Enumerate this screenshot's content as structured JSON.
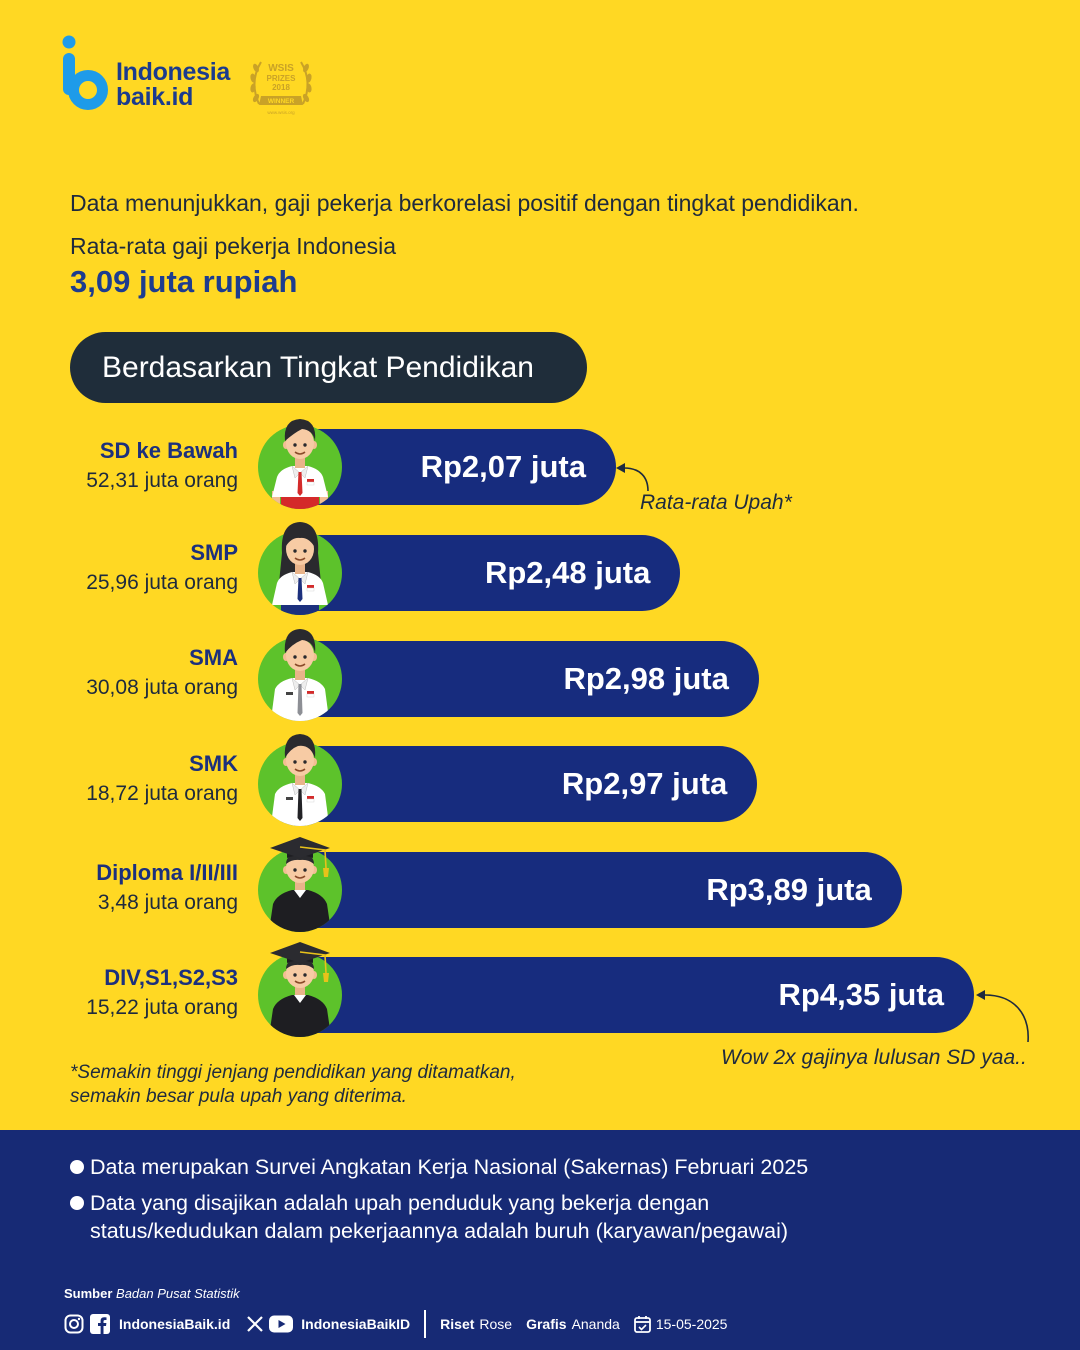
{
  "brand": {
    "name_line1": "Indonesia",
    "name_line2": "baik.id",
    "award_line1": "WSIS",
    "award_line2": "PRIZES",
    "award_line3": "2018",
    "award_line4": "WINNER",
    "award_line5": "www.wsis.org"
  },
  "intro": {
    "statement": "Data menunjukkan, gaji pekerja berkorelasi positif dengan tingkat pendidikan.",
    "avg_label": "Rata-rata gaji pekerja Indonesia",
    "avg_value": "3,09 juta rupiah"
  },
  "section_title": "Berdasarkan Tingkat Pendidikan",
  "chart_data": {
    "type": "bar",
    "orientation": "horizontal",
    "categories": [
      "SD ke Bawah",
      "SMP",
      "SMA",
      "SMK",
      "Diploma I/II/III",
      "DIV,S1,S2,S3"
    ],
    "values": [
      2.07,
      2.48,
      2.98,
      2.97,
      3.89,
      4.35
    ],
    "value_labels": [
      "Rp2,07 juta",
      "Rp2,48 juta",
      "Rp2,98 juta",
      "Rp2,97 juta",
      "Rp3,89 juta",
      "Rp4,35 juta"
    ],
    "workers": [
      "52,31 juta orang",
      "25,96 juta orang",
      "30,08 juta orang",
      "18,72 juta orang",
      "3,48 juta orang",
      "15,22 juta orang"
    ],
    "icons": [
      "elementary-student-icon",
      "junior-high-student-icon",
      "senior-high-student-icon",
      "vocational-student-icon",
      "diploma-graduate-icon",
      "university-graduate-icon"
    ]
  },
  "annotations": {
    "first": "Rata-rata Upah*",
    "last": "Wow 2x gajinya lulusan SD yaa.."
  },
  "footnote": [
    "*Semakin tinggi jenjang pendidikan yang ditamatkan,",
    "semakin besar pula upah yang diterima."
  ],
  "notes": [
    {
      "lines": [
        "Data merupakan Survei Angkatan Kerja Nasional (Sakernas) Februari 2025"
      ]
    },
    {
      "lines": [
        "Data yang disajikan adalah upah penduduk yang bekerja dengan",
        "status/kedudukan dalam pekerjaannya adalah buruh (karyawan/pegawai)"
      ]
    }
  ],
  "footer": {
    "source_label": "Sumber",
    "source_value": "Badan Pusat Statistik",
    "site": "IndonesiaBaik.id",
    "handle": "IndonesiaBaikID",
    "research_label": "Riset",
    "research_value": "Rose",
    "graphic_label": "Grafis",
    "graphic_value": "Ananda",
    "date": "15-05-2025"
  },
  "colors": {
    "background": "#FFD823",
    "bar_navy": "#172C7E",
    "band_navy": "#172A75",
    "avatar_green": "#5DC22B",
    "pill": "#1F2D3A",
    "accent_blue": "#1D3C8F",
    "logo_blue": "#1E9BE9",
    "award_gold": "#C9A227"
  }
}
